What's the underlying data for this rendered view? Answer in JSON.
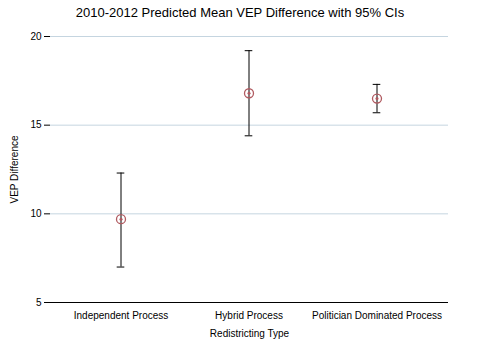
{
  "chart_data": {
    "type": "errorbar",
    "title": "2010-2012 Predicted Mean VEP Difference with 95% CIs",
    "xlabel": "Redistricting Type",
    "ylabel": "VEP Difference",
    "categories": [
      "Independent Process",
      "Hybrid Process",
      "Politician Dominated Process"
    ],
    "values": [
      9.7,
      16.8,
      16.5
    ],
    "ci_lower": [
      7.0,
      14.4,
      15.7
    ],
    "ci_upper": [
      12.3,
      19.2,
      17.3
    ],
    "ylim": [
      5,
      20
    ],
    "yticks": [
      5,
      10,
      15,
      20
    ],
    "grid": true,
    "color": "#b05a60",
    "marker": "circle"
  }
}
